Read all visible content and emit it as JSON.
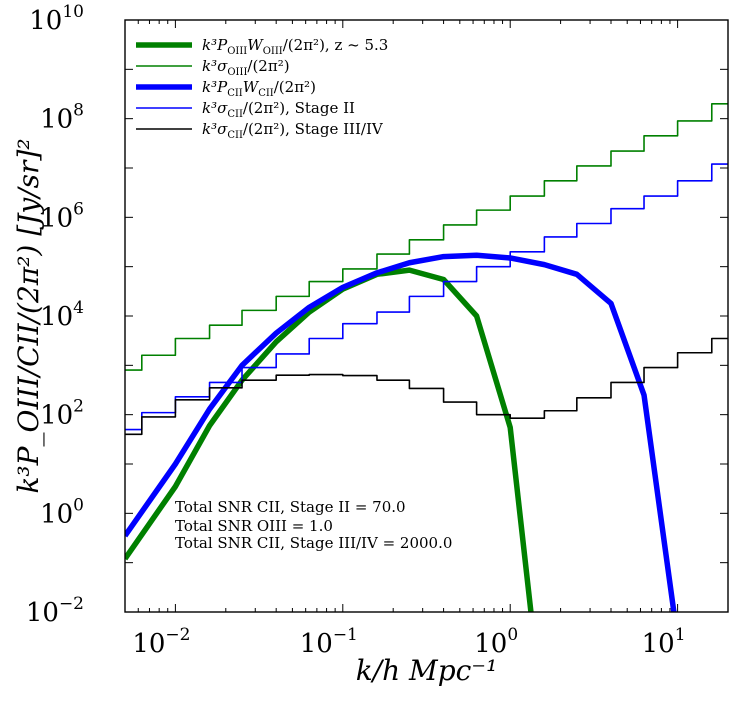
{
  "chart_data": {
    "type": "line",
    "xscale": "log",
    "yscale": "log",
    "xlim": [
      0.005,
      20
    ],
    "ylim": [
      0.01,
      10000000000.0
    ],
    "xlabel": "k/h Mpc⁻¹",
    "ylabel": "k³P_OIII/CII/(2π²) [Jy/sr]²",
    "x_ticks": [
      {
        "value": 0.01,
        "base": "10",
        "exp": "−2"
      },
      {
        "value": 0.1,
        "base": "10",
        "exp": "−1"
      },
      {
        "value": 1,
        "base": "10",
        "exp": "0"
      },
      {
        "value": 10,
        "base": "10",
        "exp": "1"
      }
    ],
    "y_ticks": [
      {
        "value": 0.01,
        "base": "10",
        "exp": "−2"
      },
      {
        "value": 1,
        "base": "10",
        "exp": "0"
      },
      {
        "value": 100,
        "base": "10",
        "exp": "2"
      },
      {
        "value": 10000,
        "base": "10",
        "exp": "4"
      },
      {
        "value": 1000000,
        "base": "10",
        "exp": "6"
      },
      {
        "value": 100000000,
        "base": "10",
        "exp": "8"
      },
      {
        "value": 10000000000,
        "base": "10",
        "exp": "10"
      }
    ],
    "series": [
      {
        "name": "k³P_OIII W_OIII/(2π²), z ~ 5.3",
        "style": "line",
        "color": "#008000",
        "width": 5.5,
        "x": [
          0.005,
          0.01,
          0.016,
          0.025,
          0.04,
          0.063,
          0.1,
          0.16,
          0.25,
          0.4,
          0.63,
          1.0,
          1.33
        ],
        "y": [
          0.12,
          3.5,
          60,
          500,
          3000,
          12000,
          35000,
          70000,
          85000,
          55000,
          10000,
          55,
          0.01
        ]
      },
      {
        "name": "k³σ_OIII/(2π²)",
        "style": "step",
        "color": "#008000",
        "width": 1.6,
        "edges": [
          0.005,
          0.0063,
          0.01,
          0.016,
          0.025,
          0.04,
          0.063,
          0.1,
          0.16,
          0.25,
          0.4,
          0.63,
          1.0,
          1.6,
          2.5,
          4.0,
          6.3,
          10,
          16,
          20
        ],
        "y": [
          800,
          1600,
          3500,
          6500,
          13000,
          25000,
          50000,
          90000,
          180000,
          350000,
          700000,
          1400000,
          2700000,
          5500000,
          11000000,
          22000000,
          45000000,
          90000000,
          200000000
        ]
      },
      {
        "name": "k³P_CII W_CII/(2π²)",
        "style": "line",
        "color": "#0000ff",
        "width": 5.5,
        "x": [
          0.005,
          0.01,
          0.016,
          0.025,
          0.04,
          0.063,
          0.1,
          0.16,
          0.25,
          0.4,
          0.63,
          1.0,
          1.6,
          2.5,
          4.0,
          6.3,
          9.5
        ],
        "y": [
          0.35,
          10,
          130,
          1000,
          4500,
          15000,
          38000,
          75000,
          120000,
          160000,
          170000,
          150000,
          110000,
          70000,
          18000,
          250,
          0.01
        ]
      },
      {
        "name": "k³σ_CII/(2π²), Stage II",
        "style": "step",
        "color": "#0000ff",
        "width": 1.6,
        "edges": [
          0.005,
          0.0063,
          0.01,
          0.016,
          0.025,
          0.04,
          0.063,
          0.1,
          0.16,
          0.25,
          0.4,
          0.63,
          1.0,
          1.6,
          2.5,
          4.0,
          6.3,
          10,
          16,
          20
        ],
        "y": [
          50,
          110,
          230,
          450,
          900,
          1700,
          3500,
          7000,
          12000,
          25000,
          50000,
          100000,
          200000,
          400000,
          750000,
          1500000,
          2700000,
          5500000,
          12000000
        ]
      },
      {
        "name": "k³σ_CII/(2π²), Stage III/IV",
        "style": "step",
        "color": "#000000",
        "width": 1.6,
        "edges": [
          0.005,
          0.0063,
          0.01,
          0.016,
          0.025,
          0.04,
          0.063,
          0.1,
          0.16,
          0.25,
          0.4,
          0.63,
          1.0,
          1.6,
          2.5,
          4.0,
          6.3,
          10,
          16,
          20
        ],
        "y": [
          40,
          90,
          200,
          350,
          500,
          630,
          650,
          620,
          500,
          340,
          180,
          100,
          85,
          120,
          220,
          450,
          900,
          1800,
          3500
        ]
      }
    ],
    "legend": {
      "placement": "top-left",
      "entries": [
        {
          "main": "k³P",
          "sub": "OIII",
          "rest": "W",
          "sub2": "OIII",
          "tail": "/(2π²), z ~ 5.3"
        },
        {
          "main": "k³σ",
          "sub": "OIII",
          "rest": "",
          "sub2": "",
          "tail": "/(2π²)"
        },
        {
          "main": "k³P",
          "sub": "CII",
          "rest": "W",
          "sub2": "CII",
          "tail": "/(2π²)"
        },
        {
          "main": "k³σ",
          "sub": "CII",
          "rest": "",
          "sub2": "",
          "tail": "/(2π²), Stage II"
        },
        {
          "main": "k³σ",
          "sub": "CII",
          "rest": "",
          "sub2": "",
          "tail": "/(2π²), Stage III/IV"
        }
      ]
    },
    "annotations": [
      "Total SNR CII, Stage II = 70.0",
      "Total SNR OIII = 1.0",
      "Total SNR CII, Stage III/IV = 2000.0"
    ]
  }
}
